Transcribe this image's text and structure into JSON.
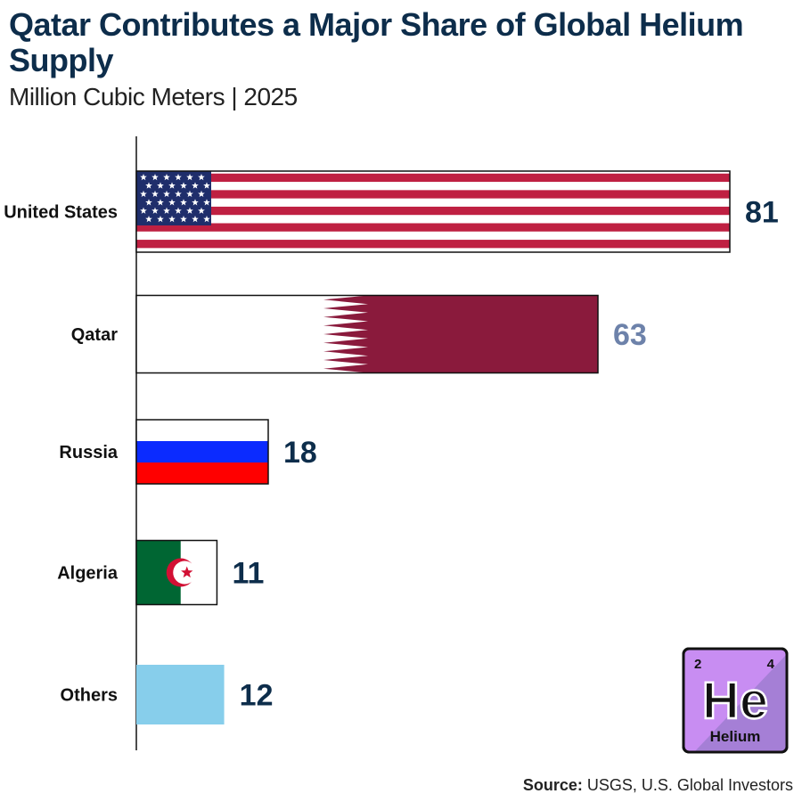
{
  "title": "Qatar Contributes a Major Share of Global Helium Supply",
  "subtitle": "Million Cubic Meters | 2025",
  "source": {
    "label": "Source:",
    "text": "USGS, U.S. Global Investors"
  },
  "element_tile": {
    "atomic_number": "2",
    "mass_number": "4",
    "symbol": "He",
    "name": "Helium"
  },
  "colors": {
    "title": "#0d2d4b",
    "value_default": "#0d2d4b",
    "value_qatar": "#6d82aa",
    "usa_red": "#bf2042",
    "usa_blue": "#1f2e6b",
    "qatar_maroon": "#8a1a3c",
    "russia_blue": "#0b2bff",
    "russia_red": "#ff0000",
    "algeria_green": "#006633",
    "algeria_red": "#d21034",
    "others": "#87ceeb",
    "tile_fill": "#c88df2",
    "tile_shadow": "#a57fd6"
  },
  "chart_data": {
    "type": "bar",
    "orientation": "horizontal",
    "categories": [
      "United States",
      "Qatar",
      "Russia",
      "Algeria",
      "Others"
    ],
    "values": [
      81,
      63,
      18,
      11,
      12
    ],
    "bar_fills": [
      "usa-flag",
      "qatar-flag",
      "russia-flag",
      "algeria-flag",
      "solid-light-blue"
    ],
    "title": "Qatar Contributes a Major Share of Global Helium Supply",
    "subtitle": "Million Cubic Meters | 2025",
    "xlabel": "",
    "ylabel": "",
    "xlim": [
      0,
      81
    ],
    "grid": false,
    "legend": "none"
  }
}
